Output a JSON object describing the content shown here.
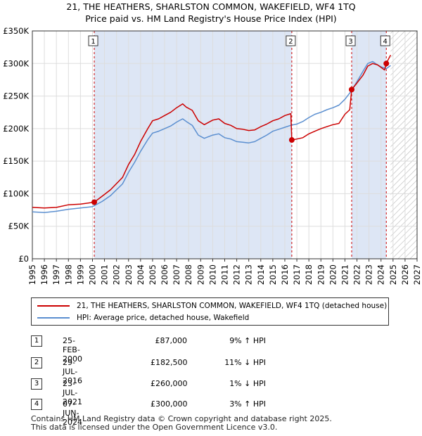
{
  "title_line1": "21, THE HEATHERS, SHARLSTON COMMON, WAKEFIELD, WF4 1TQ",
  "title_line2": "Price paid vs. HM Land Registry's House Price Index (HPI)",
  "colors": {
    "property": "#cc0000",
    "hpi": "#5b8fd0",
    "shade": "#dde6f5"
  },
  "chart_data": {
    "type": "line",
    "xlim": [
      1995,
      2027
    ],
    "ylim": [
      0,
      350000
    ],
    "x_ticks": [
      1995,
      1996,
      1997,
      1998,
      1999,
      2000,
      2001,
      2002,
      2003,
      2004,
      2005,
      2006,
      2007,
      2008,
      2009,
      2010,
      2011,
      2012,
      2013,
      2014,
      2015,
      2016,
      2017,
      2018,
      2019,
      2020,
      2021,
      2022,
      2023,
      2024,
      2025,
      2026,
      2027
    ],
    "y_ticks": [
      {
        "value": 0,
        "label": "£0"
      },
      {
        "value": 50000,
        "label": "£50K"
      },
      {
        "value": 100000,
        "label": "£100K"
      },
      {
        "value": 150000,
        "label": "£150K"
      },
      {
        "value": 200000,
        "label": "£200K"
      },
      {
        "value": 250000,
        "label": "£250K"
      },
      {
        "value": 300000,
        "label": "£300K"
      },
      {
        "value": 350000,
        "label": "£350K"
      }
    ],
    "projection_start": 2024.8,
    "shaded_ranges": [
      [
        2000.15,
        2016.58
      ],
      [
        2021.56,
        2024.44
      ]
    ],
    "series": [
      {
        "name": "21, THE HEATHERS, SHARLSTON COMMON, WAKEFIELD, WF4 1TQ (detached house)",
        "color": "#cc0000",
        "points": [
          [
            1995.0,
            79000
          ],
          [
            1996.0,
            78000
          ],
          [
            1997.0,
            79000
          ],
          [
            1998.0,
            83000
          ],
          [
            1999.0,
            84000
          ],
          [
            2000.15,
            87000
          ],
          [
            2000.8,
            96000
          ],
          [
            2001.5,
            106000
          ],
          [
            2002.5,
            125000
          ],
          [
            2003.0,
            145000
          ],
          [
            2003.5,
            160000
          ],
          [
            2004.0,
            180000
          ],
          [
            2004.6,
            200000
          ],
          [
            2005.0,
            212000
          ],
          [
            2005.5,
            215000
          ],
          [
            2006.0,
            220000
          ],
          [
            2006.5,
            225000
          ],
          [
            2007.0,
            232000
          ],
          [
            2007.5,
            238000
          ],
          [
            2007.8,
            233000
          ],
          [
            2008.3,
            228000
          ],
          [
            2008.8,
            212000
          ],
          [
            2009.3,
            206000
          ],
          [
            2010.0,
            213000
          ],
          [
            2010.5,
            215000
          ],
          [
            2011.0,
            208000
          ],
          [
            2011.5,
            205000
          ],
          [
            2012.0,
            200000
          ],
          [
            2012.5,
            199000
          ],
          [
            2013.0,
            197000
          ],
          [
            2013.5,
            198000
          ],
          [
            2014.0,
            203000
          ],
          [
            2014.5,
            207000
          ],
          [
            2015.0,
            212000
          ],
          [
            2015.5,
            215000
          ],
          [
            2016.0,
            220000
          ],
          [
            2016.5,
            223000
          ],
          [
            2016.58,
            182500
          ],
          [
            2017.0,
            184000
          ],
          [
            2017.5,
            186000
          ],
          [
            2018.0,
            192000
          ],
          [
            2018.5,
            196000
          ],
          [
            2019.0,
            200000
          ],
          [
            2019.5,
            203000
          ],
          [
            2020.0,
            206000
          ],
          [
            2020.5,
            208000
          ],
          [
            2021.0,
            222000
          ],
          [
            2021.4,
            229000
          ],
          [
            2021.56,
            260000
          ],
          [
            2022.0,
            270000
          ],
          [
            2022.5,
            282000
          ],
          [
            2022.9,
            296000
          ],
          [
            2023.3,
            300000
          ],
          [
            2023.7,
            298000
          ],
          [
            2024.0,
            294000
          ],
          [
            2024.3,
            290000
          ],
          [
            2024.44,
            300000
          ],
          [
            2024.6,
            306000
          ],
          [
            2024.8,
            313000
          ]
        ]
      },
      {
        "name": "HPI: Average price, detached house, Wakefield",
        "color": "#5b8fd0",
        "points": [
          [
            1995.0,
            72000
          ],
          [
            1996.0,
            71000
          ],
          [
            1997.0,
            73000
          ],
          [
            1998.0,
            76000
          ],
          [
            1999.0,
            78000
          ],
          [
            2000.0,
            80000
          ],
          [
            2000.8,
            88000
          ],
          [
            2001.5,
            97000
          ],
          [
            2002.5,
            115000
          ],
          [
            2003.0,
            133000
          ],
          [
            2003.5,
            148000
          ],
          [
            2004.0,
            165000
          ],
          [
            2004.6,
            183000
          ],
          [
            2005.0,
            193000
          ],
          [
            2005.5,
            196000
          ],
          [
            2006.0,
            200000
          ],
          [
            2006.5,
            204000
          ],
          [
            2007.0,
            210000
          ],
          [
            2007.5,
            215000
          ],
          [
            2007.8,
            211000
          ],
          [
            2008.3,
            205000
          ],
          [
            2008.8,
            190000
          ],
          [
            2009.3,
            185000
          ],
          [
            2010.0,
            190000
          ],
          [
            2010.5,
            192000
          ],
          [
            2011.0,
            186000
          ],
          [
            2011.5,
            184000
          ],
          [
            2012.0,
            180000
          ],
          [
            2012.5,
            179000
          ],
          [
            2013.0,
            178000
          ],
          [
            2013.5,
            180000
          ],
          [
            2014.0,
            185000
          ],
          [
            2014.5,
            190000
          ],
          [
            2015.0,
            196000
          ],
          [
            2015.5,
            199000
          ],
          [
            2016.0,
            202000
          ],
          [
            2016.5,
            205000
          ],
          [
            2017.0,
            207000
          ],
          [
            2017.5,
            211000
          ],
          [
            2018.0,
            217000
          ],
          [
            2018.5,
            222000
          ],
          [
            2019.0,
            225000
          ],
          [
            2019.5,
            229000
          ],
          [
            2020.0,
            232000
          ],
          [
            2020.5,
            236000
          ],
          [
            2021.0,
            245000
          ],
          [
            2021.5,
            257000
          ],
          [
            2022.0,
            272000
          ],
          [
            2022.5,
            288000
          ],
          [
            2022.9,
            300000
          ],
          [
            2023.3,
            303000
          ],
          [
            2023.7,
            298000
          ],
          [
            2024.0,
            295000
          ],
          [
            2024.44,
            292000
          ],
          [
            2024.8,
            297000
          ]
        ]
      }
    ],
    "markers": [
      {
        "label": "1",
        "x": 2000.15,
        "y": 87000
      },
      {
        "label": "2",
        "x": 2016.58,
        "y": 182500
      },
      {
        "label": "3",
        "x": 2021.56,
        "y": 260000
      },
      {
        "label": "4",
        "x": 2024.44,
        "y": 300000
      }
    ]
  },
  "legend": {
    "property": "21, THE HEATHERS, SHARLSTON COMMON, WAKEFIELD, WF4 1TQ (detached house)",
    "hpi": "HPI: Average price, detached house, Wakefield"
  },
  "sales": [
    {
      "num": "1",
      "date": "25-FEB-2000",
      "price": "£87,000",
      "hpi": "9% ↑ HPI"
    },
    {
      "num": "2",
      "date": "29-JUL-2016",
      "price": "£182,500",
      "hpi": "11% ↓ HPI"
    },
    {
      "num": "3",
      "date": "23-JUL-2021",
      "price": "£260,000",
      "hpi": "1% ↓ HPI"
    },
    {
      "num": "4",
      "date": "07-JUN-2024",
      "price": "£300,000",
      "hpi": "3% ↑ HPI"
    }
  ],
  "footer": {
    "line1": "Contains HM Land Registry data © Crown copyright and database right 2025.",
    "line2": "This data is licensed under the Open Government Licence v3.0."
  }
}
